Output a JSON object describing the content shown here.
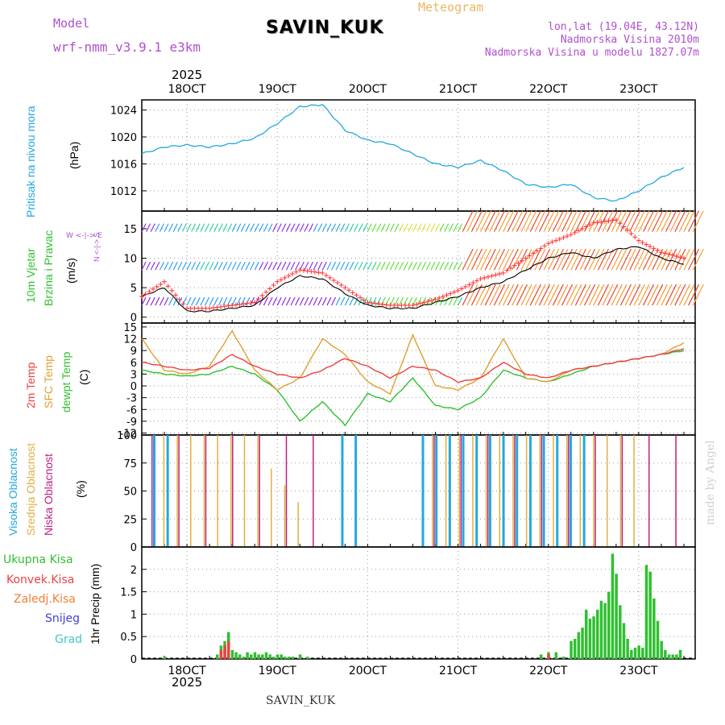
{
  "header": {
    "model_label": "Model",
    "model_name": "wrf-nmm_v3.9.1  e3km",
    "station": "SAVIN_KUK",
    "product": "Meteogram",
    "lonlat": "lon,lat (19.04E, 43.12N)",
    "altitude": "Nadmorska Visina 2010m",
    "model_altitude": "Nadmorska Visina u modelu 1827.07m",
    "footer_station": "SAVIN_KUK",
    "credit": "made by Angel",
    "year_top": "2025",
    "year_bottom": "2025"
  },
  "colors": {
    "pressure": "#22a8e0",
    "wind_speed": "#ff3030",
    "wind_gust": "#ff3030",
    "temp2m": "#ee4040",
    "sfc_temp": "#e0a030",
    "dewpt": "#30c030",
    "cloud_high": "#22a8e0",
    "cloud_mid": "#e0b040",
    "cloud_low": "#c02080",
    "precip_total": "#30c030",
    "precip_conv": "#ee4040",
    "precip_strat": "#f08030",
    "snow": "#4040e0",
    "graupel": "#40c8c8"
  },
  "chart_data": [
    {
      "type": "line",
      "panel": "pressure",
      "title": "Pritisak na nivou mora",
      "ylabel": "(hPa)",
      "ylim": [
        1009,
        1025.5
      ],
      "yticks": [
        1012,
        1016,
        1020,
        1024
      ],
      "x_hours": [
        0,
        6,
        12,
        18,
        24,
        30,
        36,
        42,
        48,
        54,
        60,
        66,
        72,
        78,
        84,
        90,
        96,
        102,
        108,
        114,
        120,
        126,
        132,
        138,
        144
      ],
      "series": [
        {
          "name": "Pritisak",
          "values": [
            1017.5,
            1018.5,
            1018.8,
            1018.5,
            1019,
            1019.8,
            1022,
            1024.5,
            1024.8,
            1021,
            1019.5,
            1019,
            1017.5,
            1016,
            1015.5,
            1016.5,
            1015,
            1013,
            1012.5,
            1013,
            1011,
            1010.5,
            1012,
            1014,
            1015.5
          ]
        }
      ]
    },
    {
      "type": "line",
      "panel": "wind",
      "title": "10m Vjetar Brzina i Pravac",
      "ylabel": "(m/s)",
      "compass_label": "N <-|-> S  W <-|-> E",
      "ylim": [
        -1,
        18
      ],
      "yticks": [
        0,
        5,
        10,
        15
      ],
      "x_hours": [
        0,
        6,
        12,
        18,
        24,
        30,
        36,
        42,
        48,
        54,
        60,
        66,
        72,
        78,
        84,
        90,
        96,
        102,
        108,
        114,
        120,
        126,
        132,
        138,
        144
      ],
      "series": [
        {
          "name": "Brzina",
          "values": [
            3.5,
            5,
            1,
            1,
            1.5,
            2,
            5,
            7,
            6.5,
            4,
            2,
            1.5,
            1.5,
            2.5,
            3.5,
            5,
            6,
            8,
            10,
            11,
            10,
            11.5,
            12,
            10,
            9
          ]
        },
        {
          "name": "Udari",
          "values": [
            3.5,
            6,
            1.5,
            1.5,
            2,
            2.5,
            6,
            8,
            7.5,
            5,
            2.5,
            2,
            2,
            3,
            4.5,
            6.5,
            7.5,
            10,
            12.5,
            14,
            16,
            16.5,
            13,
            11,
            10
          ]
        }
      ],
      "wind_bands": [
        2,
        8,
        14.5
      ]
    },
    {
      "type": "line",
      "panel": "temperature",
      "title": "2m Temp SFC Temp dewpt Temp",
      "ylabel": "(C)",
      "ylim": [
        -12.5,
        16
      ],
      "yticks": [
        -12,
        -9,
        -6,
        -3,
        0,
        3,
        6,
        9,
        12,
        15
      ],
      "x_hours": [
        0,
        6,
        12,
        18,
        24,
        30,
        36,
        42,
        48,
        54,
        60,
        66,
        72,
        78,
        84,
        90,
        96,
        102,
        108,
        114,
        120,
        126,
        132,
        138,
        144
      ],
      "series": [
        {
          "name": "2m Temp",
          "values": [
            6,
            5,
            4,
            4.5,
            8,
            5,
            3,
            2,
            4,
            7,
            5,
            2,
            5,
            4,
            1,
            2,
            6,
            3,
            2,
            4,
            5,
            6,
            7,
            8,
            9.5
          ]
        },
        {
          "name": "SFC Temp",
          "values": [
            12,
            4,
            3,
            5,
            14,
            4,
            -1,
            2,
            12,
            8,
            1,
            -2,
            13,
            0,
            -1,
            2,
            12,
            2,
            1,
            4,
            5,
            6,
            7,
            8,
            11
          ]
        },
        {
          "name": "dewpt Temp",
          "values": [
            4,
            3,
            2.5,
            3,
            5,
            3,
            -1,
            -9,
            -4,
            -10,
            -2,
            -4,
            2,
            -5,
            -6,
            -3,
            4,
            2,
            1,
            3,
            5,
            6,
            7,
            8,
            9
          ]
        }
      ]
    },
    {
      "type": "bar",
      "panel": "clouds",
      "title": "Visoka Oblacnost Srednja Oblacnost Niska Oblacnost",
      "ylabel": "(%)",
      "ylim": [
        0,
        100
      ],
      "yticks": [
        0,
        25,
        50,
        75,
        100
      ],
      "series": [
        {
          "name": "Visoka Oblacnost",
          "values": [
            100,
            100,
            0,
            0,
            0,
            0,
            0,
            0,
            0,
            0,
            0,
            0,
            0,
            0,
            100,
            100,
            0,
            0,
            0,
            0,
            100,
            100,
            100,
            100,
            100,
            100,
            100,
            100,
            100,
            100,
            100,
            100,
            100,
            0,
            0,
            0,
            0,
            0,
            0,
            0
          ]
        },
        {
          "name": "Srednja Oblacnost",
          "values": [
            0,
            100,
            100,
            100,
            100,
            100,
            100,
            100,
            100,
            70,
            55,
            40,
            0,
            0,
            0,
            0,
            0,
            0,
            0,
            0,
            0,
            100,
            100,
            100,
            100,
            100,
            100,
            100,
            100,
            100,
            100,
            100,
            100,
            100,
            100,
            100,
            100,
            0,
            0,
            0
          ]
        },
        {
          "name": "Niska Oblacnost",
          "values": [
            100,
            0,
            100,
            0,
            100,
            0,
            100,
            0,
            100,
            0,
            100,
            0,
            100,
            0,
            0,
            0,
            0,
            0,
            0,
            0,
            0,
            100,
            0,
            100,
            0,
            100,
            0,
            100,
            0,
            100,
            0,
            100,
            0,
            100,
            0,
            100,
            0,
            100,
            0,
            100
          ]
        }
      ]
    },
    {
      "type": "bar",
      "panel": "precipitation",
      "title": "1hr Precip",
      "ylabel": "(mm)",
      "ylim": [
        0,
        2.5
      ],
      "yticks": [
        0,
        0.5,
        1,
        1.5,
        2
      ],
      "legend": [
        "Ukupna Kisa",
        "Konvek.Kisa",
        "Zaledj.Kisa",
        "Snijeg",
        "Grad"
      ],
      "x_hours": [
        6,
        20,
        21,
        22,
        23,
        24,
        25,
        26,
        27,
        28,
        29,
        30,
        31,
        32,
        33,
        34,
        35,
        36,
        37,
        38,
        39,
        40,
        42,
        44,
        106,
        108,
        110,
        112,
        114,
        115,
        116,
        117,
        118,
        119,
        120,
        121,
        122,
        123,
        124,
        125,
        126,
        127,
        128,
        129,
        130,
        131,
        132,
        133,
        134,
        135,
        136,
        137,
        138,
        139,
        140,
        141,
        142,
        143
      ],
      "series": [
        {
          "name": "Ukupna Kisa",
          "values": [
            0.05,
            0.1,
            0.3,
            0.4,
            0.6,
            0.2,
            0.15,
            0.1,
            0.05,
            0.15,
            0.1,
            0.15,
            0.1,
            0.1,
            0.15,
            0.1,
            0.05,
            0.1,
            0.1,
            0.05,
            0.05,
            0.05,
            0.1,
            0.05,
            0.1,
            0.15,
            0.15,
            0.05,
            0.4,
            0.45,
            0.6,
            0.7,
            1.1,
            0.9,
            0.95,
            1.1,
            1.3,
            1.25,
            1.5,
            2.35,
            1.9,
            1.2,
            0.8,
            0.45,
            0.2,
            0.25,
            0.3,
            0.25,
            2.1,
            1.95,
            1.35,
            0.85,
            0.4,
            0.2,
            0.1,
            0.1,
            0.1,
            0.2
          ]
        },
        {
          "name": "Konvek.Kisa",
          "values": [
            0,
            0,
            0.2,
            0.3,
            0.4,
            0,
            0,
            0,
            0,
            0,
            0,
            0,
            0,
            0,
            0,
            0,
            0,
            0,
            0,
            0,
            0,
            0,
            0,
            0,
            0,
            0.1,
            0,
            0,
            0,
            0,
            0,
            0,
            0,
            0,
            0,
            0,
            0,
            0,
            0,
            0,
            0,
            0,
            0,
            0,
            0,
            0,
            0,
            0,
            0,
            0,
            0,
            0,
            0,
            0,
            0,
            0,
            0,
            0
          ]
        }
      ]
    }
  ],
  "x_axis": {
    "date_labels": [
      "18OCT",
      "19OCT",
      "20OCT",
      "21OCT",
      "22OCT",
      "23OCT"
    ],
    "date_hours": [
      12,
      36,
      60,
      84,
      108,
      132
    ],
    "range_hours": [
      0,
      147
    ]
  },
  "panel_labels": {
    "pressure_title": "Pritisak na nivou mora",
    "pressure_unit": "(hPa)",
    "wind_title_1": "10m Vjetar",
    "wind_title_2": "Brzina i Pravac",
    "wind_unit": "(m/s)",
    "compass_ns": "N <-|-> S",
    "compass_we": "W <-|-> E",
    "temp_2m": "2m Temp",
    "temp_sfc": "SFC Temp",
    "temp_dew": "dewpt Temp",
    "temp_unit": "(C)",
    "cloud_high": "Visoka Oblacnost",
    "cloud_mid": "Srednja Oblacnost",
    "cloud_low": "Niska Oblacnost",
    "cloud_unit": "(%)",
    "precip_unit": "1hr Precip (mm)",
    "legend_total": "Ukupna Kisa",
    "legend_conv": "Konvek.Kisa",
    "legend_frz": "Zaledj.Kisa",
    "legend_snow": "Snijeg",
    "legend_grad": "Grad"
  }
}
